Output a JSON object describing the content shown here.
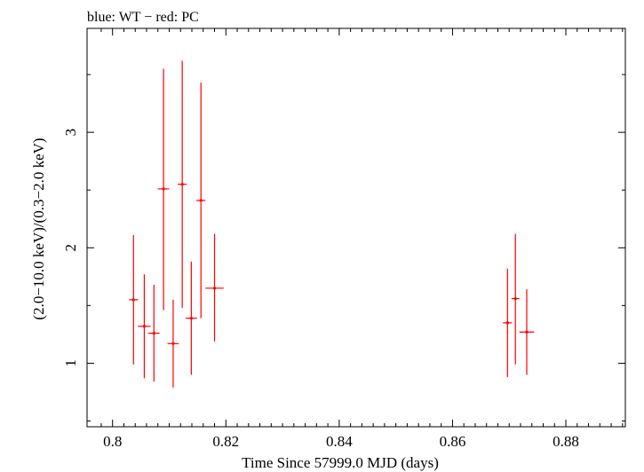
{
  "chart_data": {
    "type": "scatter",
    "title": "blue: WT − red: PC",
    "xlabel": "Time Since 57999.0 MJD (days)",
    "ylabel": "(2.0−10.0 keV)/(0.3−2.0 keV)",
    "xlim": [
      0.7955,
      0.8905
    ],
    "ylim": [
      0.45,
      3.9
    ],
    "x_ticks": [
      0.8,
      0.82,
      0.84,
      0.86,
      0.88
    ],
    "x_tick_labels": [
      "0.8",
      "0.82",
      "0.84",
      "0.86",
      "0.88"
    ],
    "y_ticks": [
      1,
      2,
      3
    ],
    "y_tick_labels": [
      "1",
      "2",
      "3"
    ],
    "series": [
      {
        "name": "PC",
        "color": "#ff0000",
        "points": [
          {
            "x": 0.8037,
            "xerr": 0.0008,
            "y": 1.55,
            "ylo": 0.99,
            "yhi": 2.11
          },
          {
            "x": 0.8056,
            "xerr": 0.0011,
            "y": 1.32,
            "ylo": 0.87,
            "yhi": 1.77
          },
          {
            "x": 0.8073,
            "xerr": 0.001,
            "y": 1.26,
            "ylo": 0.84,
            "yhi": 1.68
          },
          {
            "x": 0.809,
            "xerr": 0.001,
            "y": 2.51,
            "ylo": 1.46,
            "yhi": 3.55
          },
          {
            "x": 0.8107,
            "xerr": 0.001,
            "y": 1.17,
            "ylo": 0.79,
            "yhi": 1.55
          },
          {
            "x": 0.8123,
            "xerr": 0.0008,
            "y": 2.55,
            "ylo": 1.48,
            "yhi": 3.62
          },
          {
            "x": 0.8139,
            "xerr": 0.001,
            "y": 1.39,
            "ylo": 0.9,
            "yhi": 1.88
          },
          {
            "x": 0.8156,
            "xerr": 0.0008,
            "y": 2.41,
            "ylo": 1.39,
            "yhi": 3.43
          },
          {
            "x": 0.818,
            "xerr": 0.0016,
            "y": 1.65,
            "ylo": 1.19,
            "yhi": 2.12
          },
          {
            "x": 0.8697,
            "xerr": 0.0008,
            "y": 1.35,
            "ylo": 0.88,
            "yhi": 1.82
          },
          {
            "x": 0.8711,
            "xerr": 0.0007,
            "y": 1.56,
            "ylo": 0.99,
            "yhi": 2.12
          },
          {
            "x": 0.8731,
            "xerr": 0.0013,
            "y": 1.27,
            "ylo": 0.9,
            "yhi": 1.64
          }
        ]
      }
    ]
  }
}
